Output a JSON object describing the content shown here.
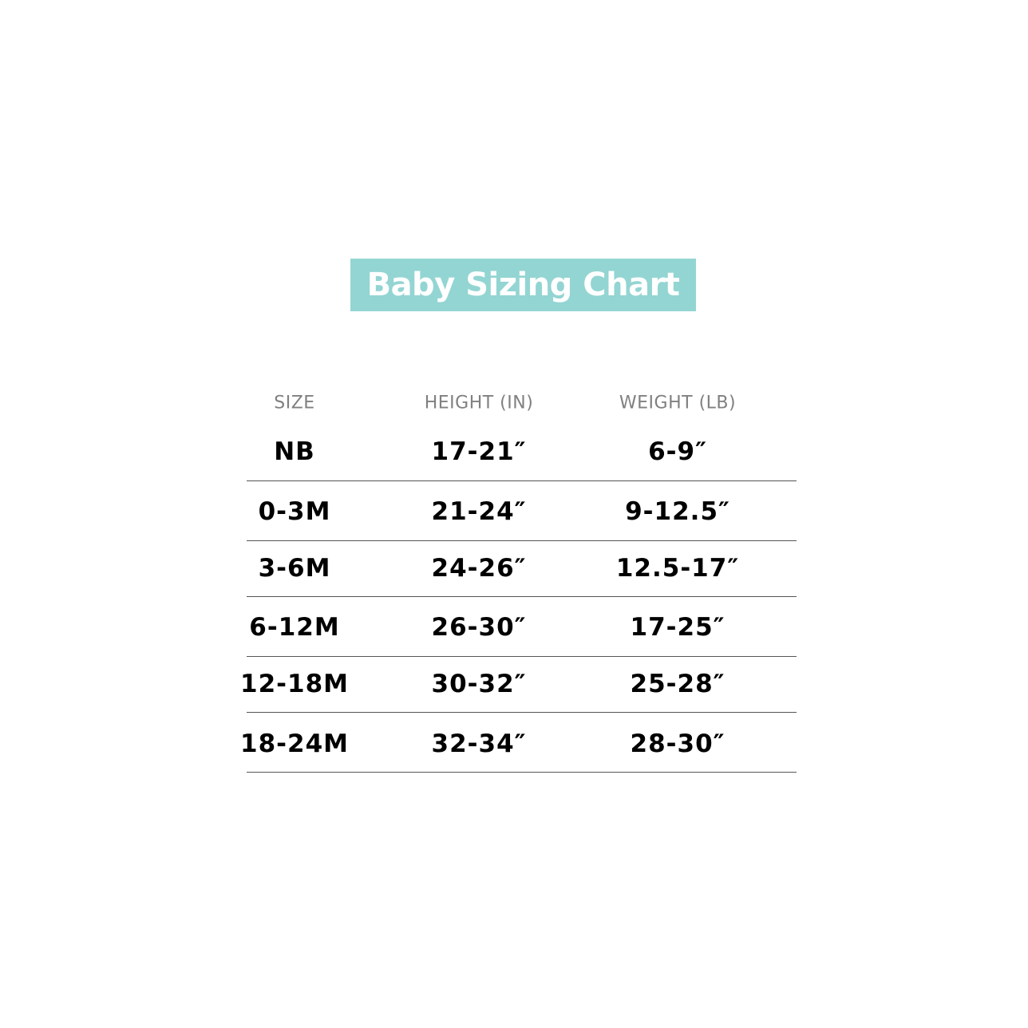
{
  "title": "Baby Sizing Chart",
  "accent_color": "#93d5d2",
  "columns": [
    "SIZE",
    "HEIGHT (IN)",
    "WEIGHT (LB)"
  ],
  "rows": [
    [
      "NB",
      "17-21″",
      "6-9″"
    ],
    [
      "0-3M",
      "21-24″",
      "9-12.5″"
    ],
    [
      "3-6M",
      "24-26″",
      "12.5-17″"
    ],
    [
      "6-12M",
      "26-30″",
      "17-25″"
    ],
    [
      "12-18M",
      "30-32″",
      "25-28″"
    ],
    [
      "18-24M",
      "32-34″",
      "28-30″"
    ]
  ]
}
